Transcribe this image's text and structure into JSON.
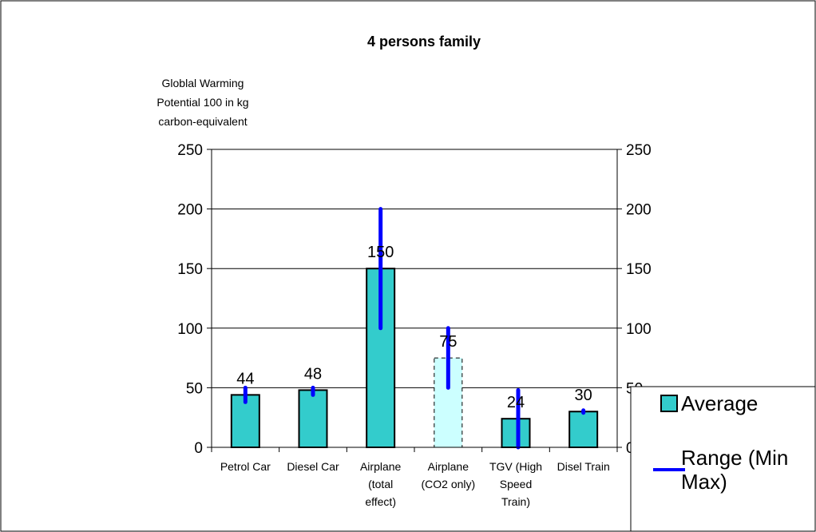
{
  "chart_data": {
    "type": "bar",
    "title": "4 persons family",
    "ylabel_lines": [
      "Globlal Warming",
      "Potential 100 in kg",
      "carbon-equivalent"
    ],
    "ylim": [
      0,
      250
    ],
    "yticks": [
      0,
      50,
      100,
      150,
      200,
      250
    ],
    "categories": [
      [
        "Petrol Car"
      ],
      [
        "Diesel Car"
      ],
      [
        "Airplane",
        "(total",
        "effect)"
      ],
      [
        "Airplane",
        "(CO2 only)"
      ],
      [
        "TGV (High",
        "Speed",
        "Train)"
      ],
      [
        "Disel Train"
      ]
    ],
    "series": [
      {
        "name": "Average",
        "values": [
          44,
          48,
          150,
          75,
          24,
          30
        ],
        "data_labels": [
          "44",
          "48",
          "150",
          "75",
          "24",
          "30"
        ],
        "color": "#33cccc",
        "highlight_color": "#ccffff"
      },
      {
        "name": "Range (Min Max)",
        "ranges": [
          [
            38,
            50
          ],
          [
            44,
            50
          ],
          [
            100,
            200
          ],
          [
            50,
            100
          ],
          [
            0,
            48
          ],
          [
            29,
            31
          ]
        ],
        "color": "#0000ff"
      }
    ],
    "legend": {
      "position": "right",
      "entries": [
        {
          "label_lines": [
            "Average"
          ]
        },
        {
          "label_lines": [
            "Range (Min",
            "Max)"
          ]
        }
      ]
    },
    "grid": true,
    "secondary_axis": true
  }
}
